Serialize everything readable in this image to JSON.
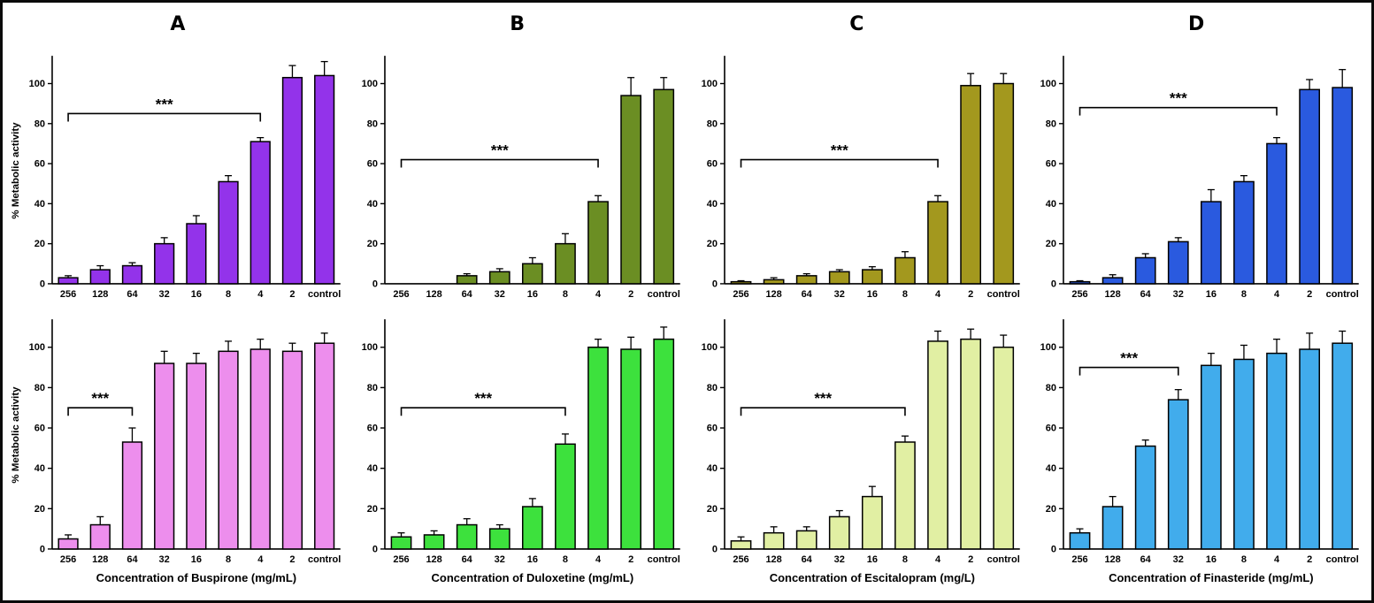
{
  "figure": {
    "headers": [
      "A",
      "B",
      "C",
      "D"
    ],
    "ylabel": "% Metabolic activity",
    "yticks": [
      0,
      20,
      40,
      60,
      80,
      100
    ],
    "ylim": [
      0,
      113
    ],
    "sig_label": "***"
  },
  "chart_data": [
    {
      "type": "bar",
      "drug": "Buspirone",
      "position": "top-A",
      "categories": [
        "256",
        "128",
        "64",
        "32",
        "16",
        "8",
        "4",
        "2",
        "control"
      ],
      "values": [
        3,
        7,
        9,
        20,
        30,
        51,
        71,
        103,
        104
      ],
      "errors": [
        1,
        2,
        1.5,
        3,
        4,
        3,
        2,
        6,
        7
      ],
      "color": "#9333EA",
      "xlabel": "",
      "significance": {
        "from": 0,
        "to": 6,
        "y": 85,
        "label": "***"
      }
    },
    {
      "type": "bar",
      "drug": "Duloxetine",
      "position": "top-B",
      "categories": [
        "256",
        "128",
        "64",
        "32",
        "16",
        "8",
        "4",
        "2",
        "control"
      ],
      "values": [
        0,
        0,
        4,
        6,
        10,
        20,
        41,
        94,
        97
      ],
      "errors": [
        0,
        0,
        1,
        1.5,
        3,
        5,
        3,
        9,
        6
      ],
      "color": "#6B8E23",
      "xlabel": "",
      "significance": {
        "from": 0,
        "to": 6,
        "y": 62,
        "label": "***"
      }
    },
    {
      "type": "bar",
      "drug": "Escitalopram",
      "position": "top-C",
      "categories": [
        "256",
        "128",
        "64",
        "32",
        "16",
        "8",
        "4",
        "2",
        "control"
      ],
      "values": [
        1,
        2,
        4,
        6,
        7,
        13,
        41,
        99,
        100
      ],
      "errors": [
        0.5,
        1,
        1,
        1,
        1.5,
        3,
        3,
        6,
        5
      ],
      "color": "#A3981E",
      "xlabel": "",
      "significance": {
        "from": 0,
        "to": 6,
        "y": 62,
        "label": "***"
      }
    },
    {
      "type": "bar",
      "drug": "Finasteride",
      "position": "top-D",
      "categories": [
        "256",
        "128",
        "64",
        "32",
        "16",
        "8",
        "4",
        "2",
        "control"
      ],
      "values": [
        1,
        3,
        13,
        21,
        41,
        51,
        70,
        97,
        98
      ],
      "errors": [
        0.5,
        1.5,
        2,
        2,
        6,
        3,
        3,
        5,
        9
      ],
      "color": "#2A5ADF",
      "xlabel": "",
      "significance": {
        "from": 0,
        "to": 6,
        "y": 88,
        "label": "***"
      }
    },
    {
      "type": "bar",
      "drug": "Buspirone",
      "position": "bottom-A",
      "categories": [
        "256",
        "128",
        "64",
        "32",
        "16",
        "8",
        "4",
        "2",
        "control"
      ],
      "values": [
        5,
        12,
        53,
        92,
        92,
        98,
        99,
        98,
        102
      ],
      "errors": [
        2,
        4,
        7,
        6,
        5,
        5,
        5,
        4,
        5
      ],
      "color": "#ED8EED",
      "xlabel": "Concentration of  Buspirone (mg/mL)",
      "significance": {
        "from": 0,
        "to": 2,
        "y": 70,
        "label": "***"
      }
    },
    {
      "type": "bar",
      "drug": "Duloxetine",
      "position": "bottom-B",
      "categories": [
        "256",
        "128",
        "64",
        "32",
        "16",
        "8",
        "4",
        "2",
        "control"
      ],
      "values": [
        6,
        7,
        12,
        10,
        21,
        52,
        100,
        99,
        104
      ],
      "errors": [
        2,
        2,
        3,
        2,
        4,
        5,
        4,
        6,
        6
      ],
      "color": "#3DE13D",
      "xlabel": "Concentration of Duloxetine (mg/mL)",
      "significance": {
        "from": 0,
        "to": 5,
        "y": 70,
        "label": "***"
      }
    },
    {
      "type": "bar",
      "drug": "Escitalopram",
      "position": "bottom-C",
      "categories": [
        "256",
        "128",
        "64",
        "32",
        "16",
        "8",
        "4",
        "2",
        "control"
      ],
      "values": [
        4,
        8,
        9,
        16,
        26,
        53,
        103,
        104,
        100
      ],
      "errors": [
        2,
        3,
        2,
        3,
        5,
        3,
        5,
        5,
        6
      ],
      "color": "#E1EFA3",
      "xlabel": "Concentration of Escitalopram (mg/L)",
      "significance": {
        "from": 0,
        "to": 5,
        "y": 70,
        "label": "***"
      }
    },
    {
      "type": "bar",
      "drug": "Finasteride",
      "position": "bottom-D",
      "categories": [
        "256",
        "128",
        "64",
        "32",
        "16",
        "8",
        "4",
        "2",
        "control"
      ],
      "values": [
        8,
        21,
        51,
        74,
        91,
        94,
        97,
        99,
        102
      ],
      "errors": [
        2,
        5,
        3,
        5,
        6,
        7,
        7,
        8,
        6
      ],
      "color": "#41ACEC",
      "xlabel": "Concentration of Finasteride (mg/mL)",
      "significance": {
        "from": 0,
        "to": 3,
        "y": 90,
        "label": "***"
      }
    }
  ]
}
